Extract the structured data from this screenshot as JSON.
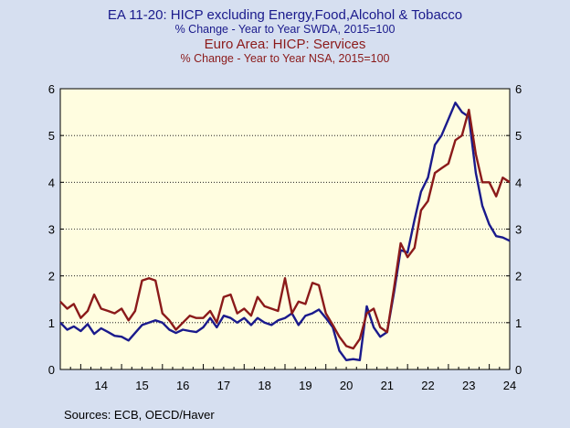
{
  "titles": {
    "line1": "EA 11-20: HICP excluding Energy,Food,Alcohol & Tobacco",
    "line2": "% Change - Year to Year    SWDA, 2015=100",
    "line3": "Euro Area: HICP: Services",
    "line4": "% Change - Year to Year    NSA, 2015=100"
  },
  "source": "Sources:  ECB, OECD/Haver",
  "colors": {
    "navy": "#1a1a8c",
    "maroon": "#8b1a1a",
    "plot_bg": "#fffde0",
    "page_bg": "#d6dff0"
  },
  "chart_data": {
    "type": "line",
    "x_start": 2013.5,
    "x_end": 2024.5,
    "ylim": [
      0,
      6
    ],
    "yticks": [
      0,
      1,
      2,
      3,
      4,
      5,
      6
    ],
    "xticks": [
      "14",
      "15",
      "16",
      "17",
      "18",
      "19",
      "20",
      "21",
      "22",
      "23",
      "24"
    ],
    "grid": "horizontal-dotted",
    "dual_axis": true,
    "series": [
      {
        "name": "EA 11-20: HICP excluding Energy,Food,Alcohol & Tobacco",
        "color": "#1a1a8c",
        "points": [
          [
            2013.5,
            1.0
          ],
          [
            2013.67,
            0.85
          ],
          [
            2013.83,
            0.92
          ],
          [
            2014.0,
            0.82
          ],
          [
            2014.17,
            0.97
          ],
          [
            2014.33,
            0.76
          ],
          [
            2014.5,
            0.88
          ],
          [
            2014.67,
            0.8
          ],
          [
            2014.83,
            0.72
          ],
          [
            2015.0,
            0.7
          ],
          [
            2015.17,
            0.62
          ],
          [
            2015.33,
            0.78
          ],
          [
            2015.5,
            0.95
          ],
          [
            2015.67,
            1.0
          ],
          [
            2015.83,
            1.05
          ],
          [
            2016.0,
            1.0
          ],
          [
            2016.17,
            0.85
          ],
          [
            2016.33,
            0.78
          ],
          [
            2016.5,
            0.85
          ],
          [
            2016.67,
            0.82
          ],
          [
            2016.83,
            0.8
          ],
          [
            2017.0,
            0.9
          ],
          [
            2017.17,
            1.1
          ],
          [
            2017.33,
            0.9
          ],
          [
            2017.5,
            1.15
          ],
          [
            2017.67,
            1.1
          ],
          [
            2017.83,
            1.0
          ],
          [
            2018.0,
            1.1
          ],
          [
            2018.17,
            0.95
          ],
          [
            2018.33,
            1.1
          ],
          [
            2018.5,
            1.0
          ],
          [
            2018.67,
            0.95
          ],
          [
            2018.83,
            1.05
          ],
          [
            2019.0,
            1.1
          ],
          [
            2019.17,
            1.2
          ],
          [
            2019.33,
            0.95
          ],
          [
            2019.5,
            1.15
          ],
          [
            2019.67,
            1.2
          ],
          [
            2019.83,
            1.28
          ],
          [
            2020.0,
            1.1
          ],
          [
            2020.17,
            0.9
          ],
          [
            2020.33,
            0.4
          ],
          [
            2020.5,
            0.2
          ],
          [
            2020.67,
            0.22
          ],
          [
            2020.83,
            0.2
          ],
          [
            2021.0,
            1.35
          ],
          [
            2021.17,
            0.9
          ],
          [
            2021.33,
            0.7
          ],
          [
            2021.5,
            0.8
          ],
          [
            2021.67,
            1.65
          ],
          [
            2021.83,
            2.55
          ],
          [
            2022.0,
            2.5
          ],
          [
            2022.17,
            3.2
          ],
          [
            2022.33,
            3.8
          ],
          [
            2022.5,
            4.1
          ],
          [
            2022.67,
            4.8
          ],
          [
            2022.83,
            5.0
          ],
          [
            2023.0,
            5.35
          ],
          [
            2023.17,
            5.7
          ],
          [
            2023.33,
            5.5
          ],
          [
            2023.5,
            5.4
          ],
          [
            2023.67,
            4.2
          ],
          [
            2023.83,
            3.5
          ],
          [
            2024.0,
            3.1
          ],
          [
            2024.17,
            2.85
          ],
          [
            2024.33,
            2.82
          ],
          [
            2024.5,
            2.75
          ]
        ]
      },
      {
        "name": "Euro Area: HICP: Services",
        "color": "#8b1a1a",
        "points": [
          [
            2013.5,
            1.45
          ],
          [
            2013.67,
            1.3
          ],
          [
            2013.83,
            1.4
          ],
          [
            2014.0,
            1.1
          ],
          [
            2014.17,
            1.25
          ],
          [
            2014.33,
            1.6
          ],
          [
            2014.5,
            1.3
          ],
          [
            2014.67,
            1.25
          ],
          [
            2014.83,
            1.2
          ],
          [
            2015.0,
            1.3
          ],
          [
            2015.17,
            1.05
          ],
          [
            2015.33,
            1.25
          ],
          [
            2015.5,
            1.9
          ],
          [
            2015.67,
            1.95
          ],
          [
            2015.83,
            1.9
          ],
          [
            2016.0,
            1.2
          ],
          [
            2016.17,
            1.05
          ],
          [
            2016.33,
            0.85
          ],
          [
            2016.5,
            1.0
          ],
          [
            2016.67,
            1.15
          ],
          [
            2016.83,
            1.1
          ],
          [
            2017.0,
            1.1
          ],
          [
            2017.17,
            1.25
          ],
          [
            2017.33,
            1.0
          ],
          [
            2017.5,
            1.55
          ],
          [
            2017.67,
            1.6
          ],
          [
            2017.83,
            1.2
          ],
          [
            2018.0,
            1.3
          ],
          [
            2018.17,
            1.15
          ],
          [
            2018.33,
            1.55
          ],
          [
            2018.5,
            1.35
          ],
          [
            2018.67,
            1.3
          ],
          [
            2018.83,
            1.25
          ],
          [
            2019.0,
            1.95
          ],
          [
            2019.17,
            1.2
          ],
          [
            2019.33,
            1.45
          ],
          [
            2019.5,
            1.4
          ],
          [
            2019.67,
            1.85
          ],
          [
            2019.83,
            1.8
          ],
          [
            2020.0,
            1.2
          ],
          [
            2020.17,
            0.95
          ],
          [
            2020.33,
            0.7
          ],
          [
            2020.5,
            0.5
          ],
          [
            2020.67,
            0.45
          ],
          [
            2020.83,
            0.65
          ],
          [
            2021.0,
            1.2
          ],
          [
            2021.17,
            1.3
          ],
          [
            2021.33,
            0.9
          ],
          [
            2021.5,
            0.8
          ],
          [
            2021.67,
            1.75
          ],
          [
            2021.83,
            2.7
          ],
          [
            2022.0,
            2.4
          ],
          [
            2022.17,
            2.6
          ],
          [
            2022.33,
            3.4
          ],
          [
            2022.5,
            3.6
          ],
          [
            2022.67,
            4.2
          ],
          [
            2022.83,
            4.3
          ],
          [
            2023.0,
            4.4
          ],
          [
            2023.17,
            4.9
          ],
          [
            2023.33,
            5.0
          ],
          [
            2023.5,
            5.55
          ],
          [
            2023.67,
            4.6
          ],
          [
            2023.83,
            4.0
          ],
          [
            2024.0,
            4.0
          ],
          [
            2024.17,
            3.7
          ],
          [
            2024.33,
            4.1
          ],
          [
            2024.5,
            4.0
          ]
        ]
      }
    ]
  }
}
